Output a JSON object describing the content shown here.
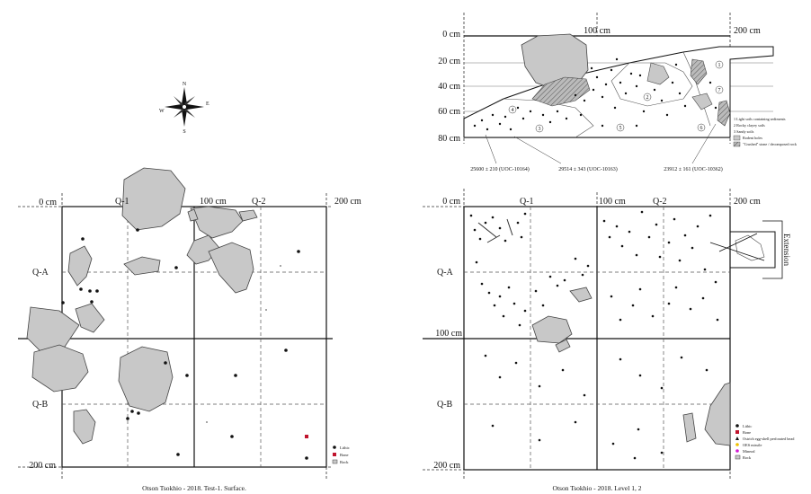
{
  "left_plan": {
    "axis": {
      "x0": "0 cm",
      "x100": "100 cm",
      "x200": "200 cm",
      "y200": "200 cm"
    },
    "quads": {
      "q1": "Q-1",
      "q2": "Q-2",
      "qa": "Q-A",
      "qb": "Q-B"
    },
    "compass": {
      "n": "N",
      "s": "S",
      "e": "E",
      "w": "W"
    },
    "legend": [
      "Lithic",
      "Bone",
      "Rock"
    ],
    "caption": "Otson Tsokhio - 2018. Test-1. Surface."
  },
  "section": {
    "axis": {
      "x0": "0 cm",
      "x100": "100 cm",
      "x200": "200 cm"
    },
    "depths": [
      "20 cm",
      "40 cm",
      "60 cm",
      "80 cm"
    ],
    "zones": [
      "1",
      "2",
      "3",
      "4",
      "5",
      "6",
      "7"
    ],
    "dates": [
      "25600 ± 210 (UOC-10164)",
      "29514 ± 343 (UOC-10163)",
      "23912 ± 161 (UOC-10362)"
    ],
    "legend": [
      "1 Light soils containing sediments",
      "2 Rocky clayey soils",
      "3 Sandy soils",
      "Rodent holes",
      "\"Crushed\" stone / decomposed rock"
    ]
  },
  "right_plan": {
    "axis": {
      "x0": "0 cm",
      "x100": "100 cm",
      "x200": "200 cm",
      "y100": "100 cm",
      "y200": "200 cm"
    },
    "quads": {
      "q1": "Q-1",
      "q2": "Q-2",
      "qa": "Q-A",
      "qb": "Q-B"
    },
    "extension": "Extension",
    "legend": [
      "Lithic",
      "Bone",
      "Ostrich egg-shell perforated bead",
      "OES missile",
      "Mineral",
      "Rock"
    ],
    "caption": "Otson Tsokhio - 2018. Level 1, 2"
  },
  "colors": {
    "rock": "#c8c8c8",
    "lithic": "#111111",
    "bone": "#c0142d",
    "ostrich": "#e0a000",
    "mineral": "#d21ad2",
    "oes": "#f0c000"
  }
}
